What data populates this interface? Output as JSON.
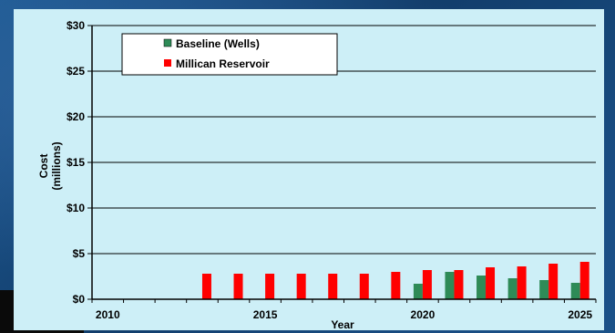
{
  "chart_data": {
    "type": "bar",
    "title": "",
    "xlabel": "Year",
    "ylabel_line1": "Cost",
    "ylabel_line2": "(millions)",
    "ylim": [
      0,
      30
    ],
    "yticks": [
      {
        "value": 0,
        "label": "$0"
      },
      {
        "value": 5,
        "label": "$5"
      },
      {
        "value": 10,
        "label": "$10"
      },
      {
        "value": 15,
        "label": "$15"
      },
      {
        "value": 20,
        "label": "$20"
      },
      {
        "value": 25,
        "label": "$25"
      },
      {
        "value": 30,
        "label": "$30"
      }
    ],
    "xlim": [
      2010,
      2025
    ],
    "xticks": [
      {
        "value": 2010,
        "label": "2010"
      },
      {
        "value": 2015,
        "label": "2015"
      },
      {
        "value": 2020,
        "label": "2020"
      },
      {
        "value": 2025,
        "label": "2025"
      }
    ],
    "grid": "horizontal",
    "legend_position": "top-left",
    "series": [
      {
        "name": "Baseline (Wells)",
        "color": "#2e8b57",
        "points": [
          {
            "x": 2020,
            "y": 1.7
          },
          {
            "x": 2021,
            "y": 3.0
          },
          {
            "x": 2022,
            "y": 2.6
          },
          {
            "x": 2023,
            "y": 2.3
          },
          {
            "x": 2024,
            "y": 2.1
          },
          {
            "x": 2025,
            "y": 1.8
          }
        ]
      },
      {
        "name": "Millican Reservoir",
        "color": "#ff0000",
        "points": [
          {
            "x": 2013,
            "y": 2.8
          },
          {
            "x": 2014,
            "y": 2.8
          },
          {
            "x": 2015,
            "y": 2.8
          },
          {
            "x": 2016,
            "y": 2.8
          },
          {
            "x": 2017,
            "y": 2.8
          },
          {
            "x": 2018,
            "y": 2.8
          },
          {
            "x": 2019,
            "y": 3.0
          },
          {
            "x": 2020,
            "y": 3.2
          },
          {
            "x": 2021,
            "y": 3.2
          },
          {
            "x": 2022,
            "y": 3.5
          },
          {
            "x": 2023,
            "y": 3.6
          },
          {
            "x": 2024,
            "y": 3.9
          },
          {
            "x": 2025,
            "y": 4.1
          }
        ]
      }
    ]
  }
}
